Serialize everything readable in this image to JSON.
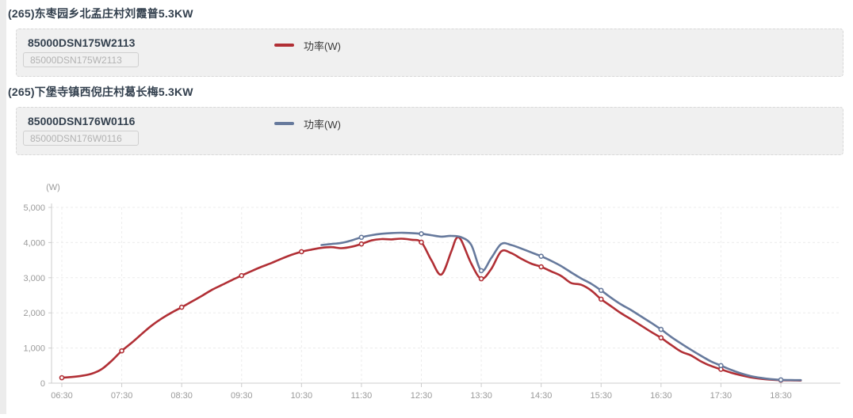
{
  "sections": [
    {
      "title": "(265)东枣园乡北孟庄村刘霞普5.3KW",
      "device_code": "85000DSN175W2113",
      "input_value": "85000DSN175W2113",
      "legend_label": "功率(W)",
      "series_color": "#b12f35"
    },
    {
      "title": "(265)下堡寺镇西倪庄村葛长梅5.3KW",
      "device_code": "85000DSN176W0116",
      "input_value": "85000DSN176W0116",
      "legend_label": "功率(W)",
      "series_color": "#66799c"
    }
  ],
  "chart_data": {
    "type": "line",
    "title": "",
    "ylabel": "(W)",
    "xlabel": "",
    "ylim": [
      0,
      5000
    ],
    "grid": true,
    "smooth": true,
    "y_ticks": [
      "5,000",
      "4,000",
      "3,000",
      "2,000",
      "1,000",
      "0"
    ],
    "x_ticks": [
      "06:30",
      "07:30",
      "08:30",
      "09:30",
      "10:30",
      "11:30",
      "12:30",
      "13:30",
      "14:30",
      "15:30",
      "16:30",
      "17:30",
      "18:30"
    ],
    "marker_rule": "hourly points ending in :30",
    "series": [
      {
        "name": "85000DSN175W2113 功率(W)",
        "color": "#b12f35",
        "points": [
          [
            "06:30",
            155
          ],
          [
            "06:40",
            175
          ],
          [
            "06:50",
            210
          ],
          [
            "07:00",
            270
          ],
          [
            "07:10",
            400
          ],
          [
            "07:20",
            640
          ],
          [
            "07:30",
            920
          ],
          [
            "07:40",
            1150
          ],
          [
            "07:50",
            1400
          ],
          [
            "08:00",
            1640
          ],
          [
            "08:10",
            1840
          ],
          [
            "08:20",
            2010
          ],
          [
            "08:30",
            2160
          ],
          [
            "08:40",
            2320
          ],
          [
            "08:50",
            2480
          ],
          [
            "09:00",
            2650
          ],
          [
            "09:10",
            2790
          ],
          [
            "09:20",
            2930
          ],
          [
            "09:30",
            3060
          ],
          [
            "09:40",
            3190
          ],
          [
            "09:50",
            3310
          ],
          [
            "10:00",
            3420
          ],
          [
            "10:10",
            3540
          ],
          [
            "10:20",
            3650
          ],
          [
            "10:30",
            3740
          ],
          [
            "10:40",
            3800
          ],
          [
            "10:50",
            3850
          ],
          [
            "11:00",
            3870
          ],
          [
            "11:10",
            3840
          ],
          [
            "11:20",
            3880
          ],
          [
            "11:30",
            3960
          ],
          [
            "11:40",
            4060
          ],
          [
            "11:50",
            4100
          ],
          [
            "12:00",
            4090
          ],
          [
            "12:10",
            4110
          ],
          [
            "12:20",
            4080
          ],
          [
            "12:30",
            4010
          ],
          [
            "12:40",
            3500
          ],
          [
            "12:50",
            3090
          ],
          [
            "13:00",
            3750
          ],
          [
            "13:05",
            4120
          ],
          [
            "13:10",
            4060
          ],
          [
            "13:20",
            3400
          ],
          [
            "13:30",
            2970
          ],
          [
            "13:40",
            3250
          ],
          [
            "13:50",
            3750
          ],
          [
            "14:00",
            3700
          ],
          [
            "14:10",
            3540
          ],
          [
            "14:20",
            3400
          ],
          [
            "14:30",
            3310
          ],
          [
            "14:40",
            3180
          ],
          [
            "14:50",
            3050
          ],
          [
            "15:00",
            2850
          ],
          [
            "15:10",
            2800
          ],
          [
            "15:20",
            2640
          ],
          [
            "15:30",
            2390
          ],
          [
            "15:40",
            2190
          ],
          [
            "15:50",
            1990
          ],
          [
            "16:00",
            1820
          ],
          [
            "16:10",
            1640
          ],
          [
            "16:20",
            1460
          ],
          [
            "16:30",
            1290
          ],
          [
            "16:40",
            1090
          ],
          [
            "16:50",
            900
          ],
          [
            "17:00",
            790
          ],
          [
            "17:10",
            620
          ],
          [
            "17:20",
            490
          ],
          [
            "17:30",
            395
          ],
          [
            "17:40",
            300
          ],
          [
            "17:50",
            225
          ],
          [
            "18:00",
            165
          ],
          [
            "18:10",
            125
          ],
          [
            "18:20",
            100
          ],
          [
            "18:30",
            85
          ],
          [
            "18:40",
            78
          ],
          [
            "18:50",
            75
          ]
        ]
      },
      {
        "name": "85000DSN176W0116 功率(W)",
        "color": "#66799c",
        "points": [
          [
            "10:50",
            3930
          ],
          [
            "11:00",
            3960
          ],
          [
            "11:10",
            3990
          ],
          [
            "11:20",
            4060
          ],
          [
            "11:30",
            4150
          ],
          [
            "11:40",
            4210
          ],
          [
            "11:50",
            4250
          ],
          [
            "12:00",
            4270
          ],
          [
            "12:10",
            4280
          ],
          [
            "12:20",
            4270
          ],
          [
            "12:30",
            4250
          ],
          [
            "12:40",
            4210
          ],
          [
            "12:50",
            4170
          ],
          [
            "13:00",
            4190
          ],
          [
            "13:10",
            4150
          ],
          [
            "13:20",
            3930
          ],
          [
            "13:30",
            3200
          ],
          [
            "13:40",
            3560
          ],
          [
            "13:50",
            3960
          ],
          [
            "14:00",
            3930
          ],
          [
            "14:10",
            3830
          ],
          [
            "14:20",
            3720
          ],
          [
            "14:30",
            3610
          ],
          [
            "14:40",
            3480
          ],
          [
            "14:50",
            3330
          ],
          [
            "15:00",
            3150
          ],
          [
            "15:10",
            2980
          ],
          [
            "15:20",
            2830
          ],
          [
            "15:30",
            2640
          ],
          [
            "15:40",
            2430
          ],
          [
            "15:50",
            2240
          ],
          [
            "16:00",
            2080
          ],
          [
            "16:10",
            1900
          ],
          [
            "16:20",
            1720
          ],
          [
            "16:30",
            1530
          ],
          [
            "16:40",
            1320
          ],
          [
            "16:50",
            1130
          ],
          [
            "17:00",
            950
          ],
          [
            "17:10",
            780
          ],
          [
            "17:20",
            620
          ],
          [
            "17:30",
            500
          ],
          [
            "17:40",
            380
          ],
          [
            "17:50",
            280
          ],
          [
            "18:00",
            200
          ],
          [
            "18:10",
            150
          ],
          [
            "18:20",
            115
          ],
          [
            "18:30",
            95
          ],
          [
            "18:40",
            88
          ],
          [
            "18:50",
            85
          ]
        ]
      }
    ]
  }
}
